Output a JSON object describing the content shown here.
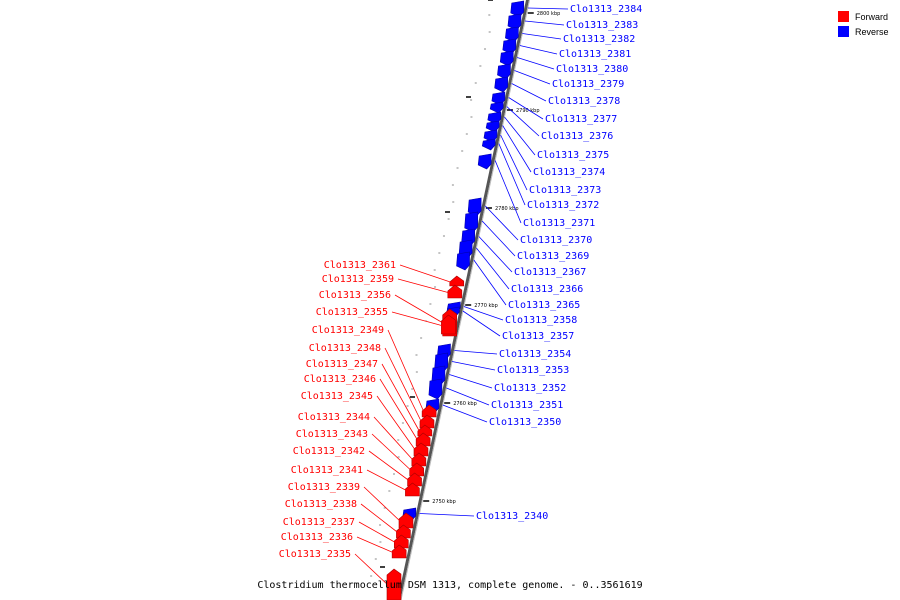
{
  "legend": {
    "forward_label": "Forward",
    "reverse_label": "Reverse",
    "forward_color": "#ff0000",
    "reverse_color": "#0000ff"
  },
  "caption": "Clostridium thermocellum DSM 1313, complete genome. - 0..3561619",
  "tick_labels": [
    "2800 kbp",
    "2790 kbp",
    "2780 kbp",
    "2770 kbp",
    "2760 kbp",
    "2750 kbp"
  ],
  "reverse_genes": [
    "Clo1313_2384",
    "Clo1313_2383",
    "Clo1313_2382",
    "Clo1313_2381",
    "Clo1313_2380",
    "Clo1313_2379",
    "Clo1313_2378",
    "Clo1313_2377",
    "Clo1313_2376",
    "Clo1313_2375",
    "Clo1313_2374",
    "Clo1313_2373",
    "Clo1313_2372",
    "Clo1313_2371",
    "Clo1313_2370",
    "Clo1313_2369",
    "Clo1313_2367",
    "Clo1313_2366",
    "Clo1313_2365",
    "Clo1313_2358",
    "Clo1313_2357",
    "Clo1313_2354",
    "Clo1313_2353",
    "Clo1313_2352",
    "Clo1313_2351",
    "Clo1313_2350",
    "Clo1313_2340"
  ],
  "forward_genes": [
    "Clo1313_2361",
    "Clo1313_2359",
    "Clo1313_2356",
    "Clo1313_2355",
    "Clo1313_2349",
    "Clo1313_2348",
    "Clo1313_2347",
    "Clo1313_2346",
    "Clo1313_2345",
    "Clo1313_2344",
    "Clo1313_2343",
    "Clo1313_2342",
    "Clo1313_2341",
    "Clo1313_2339",
    "Clo1313_2338",
    "Clo1313_2337",
    "Clo1313_2336",
    "Clo1313_2335"
  ]
}
